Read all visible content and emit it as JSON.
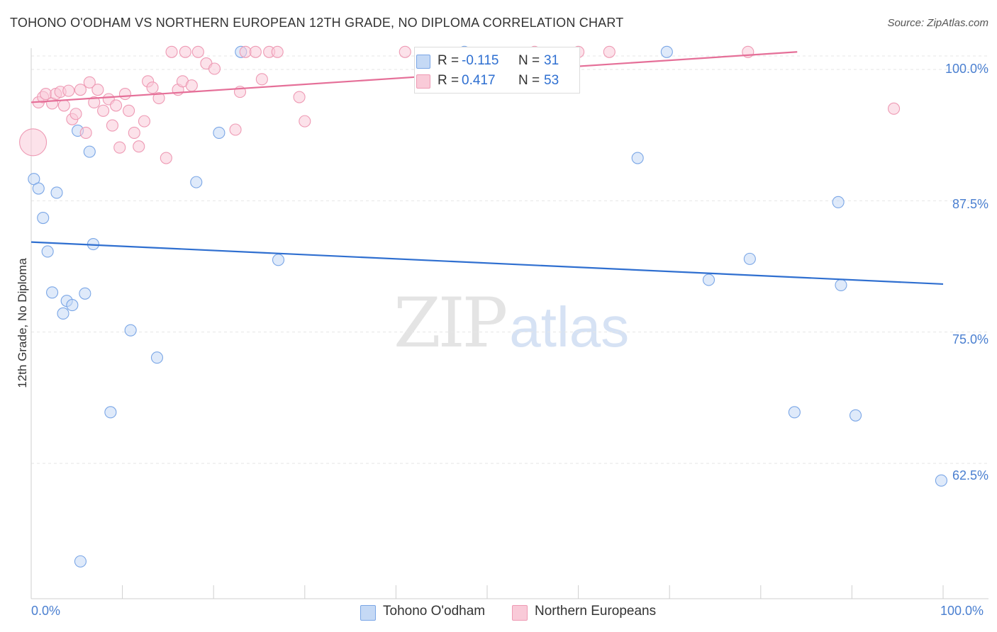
{
  "header": {
    "title": "TOHONO O'ODHAM VS NORTHERN EUROPEAN 12TH GRADE, NO DIPLOMA CORRELATION CHART",
    "source": "Source: ZipAtlas.com"
  },
  "watermark": {
    "zip": "ZIP",
    "atlas": "atlas"
  },
  "legend": {
    "rows": [
      {
        "r_label": "R =",
        "r_value": "-0.115",
        "n_label": "N =",
        "n_value": "31",
        "color": "#b8d0f2"
      },
      {
        "r_label": "R =",
        "r_value": "0.417",
        "n_label": "N =",
        "n_value": "53",
        "color": "#f8bccd"
      }
    ]
  },
  "bottom_legend": {
    "items": [
      {
        "label": "Tohono O'odham",
        "color": "#b8d0f2"
      },
      {
        "label": "Northern Europeans",
        "color": "#f8bccd"
      }
    ]
  },
  "chart_data": {
    "type": "scatter",
    "title": "TOHONO O'ODHAM VS NORTHERN EUROPEAN 12TH GRADE, NO DIPLOMA CORRELATION CHART",
    "xlabel": "",
    "ylabel": "12th Grade, No Diploma",
    "xlim": [
      0,
      100
    ],
    "ylim": [
      51.5,
      101.5
    ],
    "x_tick_labels": [
      "0.0%",
      "100.0%"
    ],
    "y_tick_values": [
      100.0,
      87.5,
      75.0,
      62.5
    ],
    "y_tick_labels": [
      "100.0%",
      "87.5%",
      "75.0%",
      "62.5%"
    ],
    "grid": true,
    "legend_position": "top-center",
    "series": [
      {
        "name": "Tohono O'odham",
        "color": "#7aa6e6",
        "fill": "#c5d9f5",
        "trend": {
          "x": [
            0,
            100
          ],
          "y": [
            83.5,
            79.5
          ],
          "color": "#2f6fd0"
        },
        "points": [
          {
            "x": 0.3,
            "y": 89.5
          },
          {
            "x": 0.8,
            "y": 88.6
          },
          {
            "x": 1.3,
            "y": 85.8
          },
          {
            "x": 1.8,
            "y": 82.6
          },
          {
            "x": 2.3,
            "y": 78.7
          },
          {
            "x": 2.8,
            "y": 88.2
          },
          {
            "x": 3.5,
            "y": 76.7
          },
          {
            "x": 3.9,
            "y": 77.9
          },
          {
            "x": 4.5,
            "y": 77.5
          },
          {
            "x": 5.1,
            "y": 94.1
          },
          {
            "x": 5.4,
            "y": 53.1
          },
          {
            "x": 5.9,
            "y": 78.6
          },
          {
            "x": 6.4,
            "y": 92.1
          },
          {
            "x": 6.8,
            "y": 83.3
          },
          {
            "x": 8.7,
            "y": 67.3
          },
          {
            "x": 10.9,
            "y": 75.1
          },
          {
            "x": 13.8,
            "y": 72.5
          },
          {
            "x": 18.1,
            "y": 89.2
          },
          {
            "x": 20.6,
            "y": 93.9
          },
          {
            "x": 23.0,
            "y": 101.6
          },
          {
            "x": 27.1,
            "y": 81.8
          },
          {
            "x": 47.5,
            "y": 101.6
          },
          {
            "x": 66.5,
            "y": 91.5
          },
          {
            "x": 69.7,
            "y": 101.6
          },
          {
            "x": 74.3,
            "y": 79.9
          },
          {
            "x": 78.8,
            "y": 81.9
          },
          {
            "x": 83.7,
            "y": 67.3
          },
          {
            "x": 88.5,
            "y": 87.3
          },
          {
            "x": 88.8,
            "y": 79.4
          },
          {
            "x": 90.4,
            "y": 67.0
          },
          {
            "x": 99.8,
            "y": 60.8
          }
        ]
      },
      {
        "name": "Northern Europeans",
        "color": "#ee9ab4",
        "fill": "#f9cad8",
        "trend": {
          "x": [
            0,
            84
          ],
          "y": [
            96.8,
            101.6
          ],
          "color": "#e56f98"
        },
        "points": [
          {
            "x": 0.2,
            "y": 93.0,
            "big": true
          },
          {
            "x": 0.8,
            "y": 96.8
          },
          {
            "x": 1.3,
            "y": 97.3
          },
          {
            "x": 1.6,
            "y": 97.6
          },
          {
            "x": 2.3,
            "y": 96.7
          },
          {
            "x": 2.7,
            "y": 97.6
          },
          {
            "x": 3.2,
            "y": 97.8
          },
          {
            "x": 3.6,
            "y": 96.5
          },
          {
            "x": 4.1,
            "y": 97.9
          },
          {
            "x": 4.5,
            "y": 95.2
          },
          {
            "x": 4.9,
            "y": 95.7
          },
          {
            "x": 5.4,
            "y": 98.0
          },
          {
            "x": 6.0,
            "y": 93.9
          },
          {
            "x": 6.4,
            "y": 98.7
          },
          {
            "x": 6.9,
            "y": 96.8
          },
          {
            "x": 7.3,
            "y": 98.0
          },
          {
            "x": 7.9,
            "y": 96.0
          },
          {
            "x": 8.5,
            "y": 97.1
          },
          {
            "x": 8.9,
            "y": 94.6
          },
          {
            "x": 9.3,
            "y": 96.5
          },
          {
            "x": 9.7,
            "y": 92.5
          },
          {
            "x": 10.3,
            "y": 97.6
          },
          {
            "x": 10.7,
            "y": 96.0
          },
          {
            "x": 11.3,
            "y": 93.9
          },
          {
            "x": 11.8,
            "y": 92.6
          },
          {
            "x": 12.4,
            "y": 95.0
          },
          {
            "x": 12.8,
            "y": 98.8
          },
          {
            "x": 13.3,
            "y": 98.2
          },
          {
            "x": 14.0,
            "y": 97.2
          },
          {
            "x": 14.8,
            "y": 91.5
          },
          {
            "x": 15.4,
            "y": 101.6
          },
          {
            "x": 16.1,
            "y": 98.0
          },
          {
            "x": 16.6,
            "y": 98.8
          },
          {
            "x": 16.9,
            "y": 101.6
          },
          {
            "x": 17.6,
            "y": 98.4
          },
          {
            "x": 18.3,
            "y": 101.6
          },
          {
            "x": 19.2,
            "y": 100.5
          },
          {
            "x": 20.1,
            "y": 100.0
          },
          {
            "x": 22.4,
            "y": 94.2
          },
          {
            "x": 22.9,
            "y": 97.8
          },
          {
            "x": 23.5,
            "y": 101.6
          },
          {
            "x": 24.6,
            "y": 101.6
          },
          {
            "x": 25.3,
            "y": 99.0
          },
          {
            "x": 26.1,
            "y": 101.6
          },
          {
            "x": 27.0,
            "y": 101.6
          },
          {
            "x": 29.4,
            "y": 97.3
          },
          {
            "x": 30.0,
            "y": 95.0
          },
          {
            "x": 41.0,
            "y": 101.6
          },
          {
            "x": 55.2,
            "y": 101.6
          },
          {
            "x": 60.0,
            "y": 101.6
          },
          {
            "x": 63.4,
            "y": 101.6
          },
          {
            "x": 78.6,
            "y": 101.6
          },
          {
            "x": 94.6,
            "y": 96.2
          }
        ]
      }
    ]
  }
}
